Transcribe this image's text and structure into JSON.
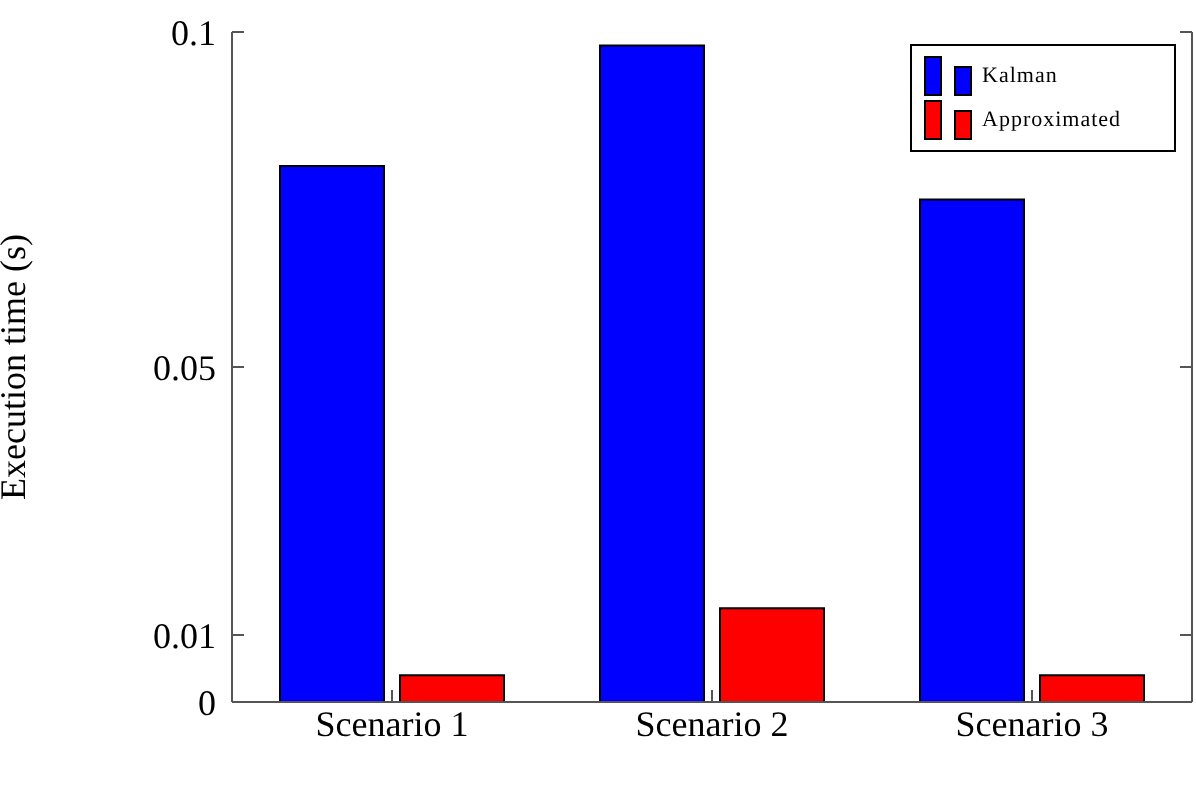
{
  "chart_data": {
    "type": "bar",
    "ylabel": "Execution time (s)",
    "categories": [
      "Scenario 1",
      "Scenario 2",
      "Scenario 3"
    ],
    "series": [
      {
        "name": "Kalman",
        "color": "#0000ff",
        "values": [
          0.08,
          0.098,
          0.075
        ]
      },
      {
        "name": "Approximated",
        "color": "#ff0000",
        "values": [
          0.004,
          0.014,
          0.004
        ]
      }
    ],
    "ylim": [
      0,
      0.1
    ],
    "yticks": [
      0,
      0.01,
      0.05,
      0.1
    ],
    "grid": false,
    "legend": "top right"
  }
}
